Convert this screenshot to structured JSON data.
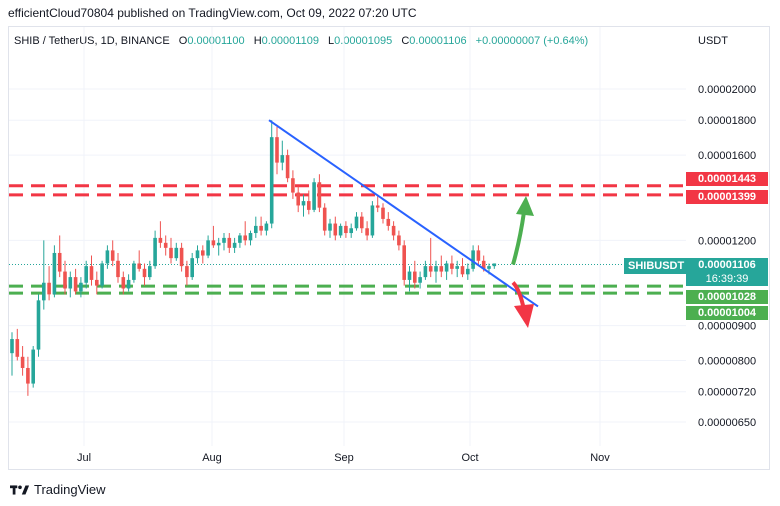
{
  "header": {
    "publisher": "efficientCloud70804 published on TradingView.com, Oct 09, 2022 07:20 UTC"
  },
  "legend": {
    "symbol": "SHIB / TetherUS, 1D, BINANCE",
    "open_label": "O",
    "open": "0.00001100",
    "high_label": "H",
    "high": "0.00001109",
    "low_label": "L",
    "low": "0.00001095",
    "close_label": "C",
    "close": "0.00001106",
    "change": "+0.00000007 (+0.64%)"
  },
  "currency": "USDT",
  "tags": {
    "red_upper": "0.00001443",
    "red_lower": "0.00001399",
    "symbol": "SHIBUSDT",
    "price": "0.00001106",
    "countdown": "16:39:39",
    "green_upper": "0.00001028",
    "green_lower": "0.00001004"
  },
  "footer": {
    "brand": "TradingView"
  },
  "colors": {
    "up": "#26a69a",
    "down": "#ef5350",
    "trendline": "#2962ff",
    "resistance": "#f23645",
    "support": "#4caf50"
  },
  "chart_data": {
    "type": "candlestick",
    "y_axis_scale": "log",
    "y_ticks": [
      "0.00002000",
      "0.00001800",
      "0.00001600",
      "0.00001200",
      "0.00000900",
      "0.00000800",
      "0.00000720",
      "0.00000650"
    ],
    "x_ticks": [
      "Jul",
      "Aug",
      "Sep",
      "Oct",
      "Nov"
    ],
    "resistance_zone": [
      1.399e-05,
      1.443e-05
    ],
    "support_zone": [
      1.004e-05,
      1.028e-05
    ],
    "last_price": 1.106e-05,
    "trendline": {
      "from": {
        "date": "2022-08-14",
        "price": 1.8e-05
      },
      "to": {
        "date": "2022-10-20",
        "price": 9.6e-06
      }
    },
    "forecast_arrows": [
      "up",
      "down"
    ],
    "candles": [
      {
        "o": 8.2e-06,
        "h": 8.8e-06,
        "l": 7.6e-06,
        "c": 8.6e-06
      },
      {
        "o": 8.6e-06,
        "h": 8.9e-06,
        "l": 8e-06,
        "c": 8.1e-06
      },
      {
        "o": 8.1e-06,
        "h": 8.4e-06,
        "l": 7.6e-06,
        "c": 7.8e-06
      },
      {
        "o": 7.8e-06,
        "h": 8.1e-06,
        "l": 7.1e-06,
        "c": 7.4e-06
      },
      {
        "o": 7.4e-06,
        "h": 8.4e-06,
        "l": 7.3e-06,
        "c": 8.3e-06
      },
      {
        "o": 8.3e-06,
        "h": 1e-05,
        "l": 8.1e-06,
        "c": 9.8e-06
      },
      {
        "o": 9.8e-06,
        "h": 1.2e-05,
        "l": 9.5e-06,
        "c": 1.04e-05
      },
      {
        "o": 1.04e-05,
        "h": 1.1e-05,
        "l": 9.8e-06,
        "c": 1e-05
      },
      {
        "o": 1e-05,
        "h": 1.18e-05,
        "l": 9.9e-06,
        "c": 1.15e-05
      },
      {
        "o": 1.15e-05,
        "h": 1.22e-05,
        "l": 1.06e-05,
        "c": 1.08e-05
      },
      {
        "o": 1.08e-05,
        "h": 1.12e-05,
        "l": 1e-05,
        "c": 1.02e-05
      },
      {
        "o": 1.02e-05,
        "h": 1.08e-05,
        "l": 9.9e-06,
        "c": 1.06e-05
      },
      {
        "o": 1.06e-05,
        "h": 1.09e-05,
        "l": 1e-05,
        "c": 1.01e-05
      },
      {
        "o": 1.01e-05,
        "h": 1.06e-05,
        "l": 9.9e-06,
        "c": 1.04e-05
      },
      {
        "o": 1.04e-05,
        "h": 1.12e-05,
        "l": 1.02e-05,
        "c": 1.1e-05
      },
      {
        "o": 1.1e-05,
        "h": 1.14e-05,
        "l": 1.03e-05,
        "c": 1.05e-05
      },
      {
        "o": 1.05e-05,
        "h": 1.08e-05,
        "l": 1e-05,
        "c": 1.03e-05
      },
      {
        "o": 1.03e-05,
        "h": 1.12e-05,
        "l": 1.02e-05,
        "c": 1.11e-05
      },
      {
        "o": 1.11e-05,
        "h": 1.18e-05,
        "l": 1.09e-05,
        "c": 1.16e-05
      },
      {
        "o": 1.16e-05,
        "h": 1.2e-05,
        "l": 1.1e-05,
        "c": 1.12e-05
      },
      {
        "o": 1.12e-05,
        "h": 1.15e-05,
        "l": 1.04e-05,
        "c": 1.06e-05
      },
      {
        "o": 1.06e-05,
        "h": 1.08e-05,
        "l": 1e-05,
        "c": 1.02e-05
      },
      {
        "o": 1.02e-05,
        "h": 1.07e-05,
        "l": 1.01e-05,
        "c": 1.05e-05
      },
      {
        "o": 1.05e-05,
        "h": 1.12e-05,
        "l": 1.04e-05,
        "c": 1.11e-05
      },
      {
        "o": 1.11e-05,
        "h": 1.16e-05,
        "l": 1.08e-05,
        "c": 1.09e-05
      },
      {
        "o": 1.09e-05,
        "h": 1.11e-05,
        "l": 1.03e-05,
        "c": 1.06e-05
      },
      {
        "o": 1.06e-05,
        "h": 1.12e-05,
        "l": 1.05e-05,
        "c": 1.1e-05
      },
      {
        "o": 1.1e-05,
        "h": 1.24e-05,
        "l": 1.09e-05,
        "c": 1.21e-05
      },
      {
        "o": 1.21e-05,
        "h": 1.28e-05,
        "l": 1.17e-05,
        "c": 1.19e-05
      },
      {
        "o": 1.19e-05,
        "h": 1.22e-05,
        "l": 1.14e-05,
        "c": 1.17e-05
      },
      {
        "o": 1.17e-05,
        "h": 1.21e-05,
        "l": 1.11e-05,
        "c": 1.13e-05
      },
      {
        "o": 1.13e-05,
        "h": 1.19e-05,
        "l": 1.12e-05,
        "c": 1.17e-05
      },
      {
        "o": 1.17e-05,
        "h": 1.19e-05,
        "l": 1.08e-05,
        "c": 1.1e-05
      },
      {
        "o": 1.1e-05,
        "h": 1.12e-05,
        "l": 1.03e-05,
        "c": 1.06e-05
      },
      {
        "o": 1.06e-05,
        "h": 1.15e-05,
        "l": 1.05e-05,
        "c": 1.13e-05
      },
      {
        "o": 1.13e-05,
        "h": 1.18e-05,
        "l": 1.11e-05,
        "c": 1.16e-05
      },
      {
        "o": 1.16e-05,
        "h": 1.18e-05,
        "l": 1.11e-05,
        "c": 1.14e-05
      },
      {
        "o": 1.14e-05,
        "h": 1.22e-05,
        "l": 1.13e-05,
        "c": 1.2e-05
      },
      {
        "o": 1.2e-05,
        "h": 1.26e-05,
        "l": 1.17e-05,
        "c": 1.18e-05
      },
      {
        "o": 1.18e-05,
        "h": 1.21e-05,
        "l": 1.14e-05,
        "c": 1.19e-05
      },
      {
        "o": 1.19e-05,
        "h": 1.23e-05,
        "l": 1.16e-05,
        "c": 1.21e-05
      },
      {
        "o": 1.21e-05,
        "h": 1.23e-05,
        "l": 1.15e-05,
        "c": 1.17e-05
      },
      {
        "o": 1.17e-05,
        "h": 1.21e-05,
        "l": 1.15e-05,
        "c": 1.19e-05
      },
      {
        "o": 1.19e-05,
        "h": 1.23e-05,
        "l": 1.17e-05,
        "c": 1.22e-05
      },
      {
        "o": 1.22e-05,
        "h": 1.28e-05,
        "l": 1.18e-05,
        "c": 1.2e-05
      },
      {
        "o": 1.2e-05,
        "h": 1.24e-05,
        "l": 1.18e-05,
        "c": 1.23e-05
      },
      {
        "o": 1.23e-05,
        "h": 1.3e-05,
        "l": 1.21e-05,
        "c": 1.26e-05
      },
      {
        "o": 1.26e-05,
        "h": 1.3e-05,
        "l": 1.22e-05,
        "c": 1.24e-05
      },
      {
        "o": 1.24e-05,
        "h": 1.28e-05,
        "l": 1.22e-05,
        "c": 1.27e-05
      },
      {
        "o": 1.27e-05,
        "h": 1.8e-05,
        "l": 1.25e-05,
        "c": 1.7e-05
      },
      {
        "o": 1.7e-05,
        "h": 1.76e-05,
        "l": 1.5e-05,
        "c": 1.56e-05
      },
      {
        "o": 1.56e-05,
        "h": 1.68e-05,
        "l": 1.52e-05,
        "c": 1.6e-05
      },
      {
        "o": 1.6e-05,
        "h": 1.63e-05,
        "l": 1.46e-05,
        "c": 1.48e-05
      },
      {
        "o": 1.48e-05,
        "h": 1.52e-05,
        "l": 1.38e-05,
        "c": 1.41e-05
      },
      {
        "o": 1.41e-05,
        "h": 1.44e-05,
        "l": 1.32e-05,
        "c": 1.35e-05
      },
      {
        "o": 1.35e-05,
        "h": 1.4e-05,
        "l": 1.3e-05,
        "c": 1.37e-05
      },
      {
        "o": 1.37e-05,
        "h": 1.42e-05,
        "l": 1.31e-05,
        "c": 1.33e-05
      },
      {
        "o": 1.33e-05,
        "h": 1.48e-05,
        "l": 1.32e-05,
        "c": 1.46e-05
      },
      {
        "o": 1.46e-05,
        "h": 1.5e-05,
        "l": 1.32e-05,
        "c": 1.34e-05
      },
      {
        "o": 1.34e-05,
        "h": 1.36e-05,
        "l": 1.22e-05,
        "c": 1.24e-05
      },
      {
        "o": 1.24e-05,
        "h": 1.29e-05,
        "l": 1.21e-05,
        "c": 1.27e-05
      },
      {
        "o": 1.27e-05,
        "h": 1.3e-05,
        "l": 1.2e-05,
        "c": 1.22e-05
      },
      {
        "o": 1.22e-05,
        "h": 1.27e-05,
        "l": 1.21e-05,
        "c": 1.26e-05
      },
      {
        "o": 1.26e-05,
        "h": 1.28e-05,
        "l": 1.21e-05,
        "c": 1.23e-05
      },
      {
        "o": 1.23e-05,
        "h": 1.27e-05,
        "l": 1.21e-05,
        "c": 1.25e-05
      },
      {
        "o": 1.25e-05,
        "h": 1.32e-05,
        "l": 1.24e-05,
        "c": 1.3e-05
      },
      {
        "o": 1.3e-05,
        "h": 1.32e-05,
        "l": 1.23e-05,
        "c": 1.25e-05
      },
      {
        "o": 1.25e-05,
        "h": 1.28e-05,
        "l": 1.2e-05,
        "c": 1.22e-05
      },
      {
        "o": 1.22e-05,
        "h": 1.37e-05,
        "l": 1.21e-05,
        "c": 1.35e-05
      },
      {
        "o": 1.35e-05,
        "h": 1.4e-05,
        "l": 1.32e-05,
        "c": 1.34e-05
      },
      {
        "o": 1.34e-05,
        "h": 1.36e-05,
        "l": 1.27e-05,
        "c": 1.29e-05
      },
      {
        "o": 1.29e-05,
        "h": 1.32e-05,
        "l": 1.24e-05,
        "c": 1.26e-05
      },
      {
        "o": 1.26e-05,
        "h": 1.28e-05,
        "l": 1.2e-05,
        "c": 1.22e-05
      },
      {
        "o": 1.22e-05,
        "h": 1.24e-05,
        "l": 1.16e-05,
        "c": 1.18e-05
      },
      {
        "o": 1.18e-05,
        "h": 1.2e-05,
        "l": 1.03e-05,
        "c": 1.05e-05
      },
      {
        "o": 1.05e-05,
        "h": 1.1e-05,
        "l": 1.01e-05,
        "c": 1.08e-05
      },
      {
        "o": 1.08e-05,
        "h": 1.12e-05,
        "l": 1.02e-05,
        "c": 1.04e-05
      },
      {
        "o": 1.04e-05,
        "h": 1.08e-05,
        "l": 1.02e-05,
        "c": 1.06e-05
      },
      {
        "o": 1.06e-05,
        "h": 1.12e-05,
        "l": 1.05e-05,
        "c": 1.1e-05
      },
      {
        "o": 1.1e-05,
        "h": 1.21e-05,
        "l": 1.06e-05,
        "c": 1.08e-05
      },
      {
        "o": 1.08e-05,
        "h": 1.12e-05,
        "l": 1.04e-05,
        "c": 1.1e-05
      },
      {
        "o": 1.1e-05,
        "h": 1.14e-05,
        "l": 1.06e-05,
        "c": 1.08e-05
      },
      {
        "o": 1.08e-05,
        "h": 1.12e-05,
        "l": 1.05e-05,
        "c": 1.11e-05
      },
      {
        "o": 1.11e-05,
        "h": 1.14e-05,
        "l": 1.07e-05,
        "c": 1.09e-05
      },
      {
        "o": 1.09e-05,
        "h": 1.12e-05,
        "l": 1.06e-05,
        "c": 1.1e-05
      },
      {
        "o": 1.1e-05,
        "h": 1.13e-05,
        "l": 1.06e-05,
        "c": 1.07e-05
      },
      {
        "o": 1.07e-05,
        "h": 1.11e-05,
        "l": 1.05e-05,
        "c": 1.09e-05
      },
      {
        "o": 1.09e-05,
        "h": 1.18e-05,
        "l": 1.08e-05,
        "c": 1.16e-05
      },
      {
        "o": 1.16e-05,
        "h": 1.18e-05,
        "l": 1.1e-05,
        "c": 1.12e-05
      },
      {
        "o": 1.12e-05,
        "h": 1.14e-05,
        "l": 1.08e-05,
        "c": 1.09e-05
      },
      {
        "o": 1.09e-05,
        "h": 1.11e-05,
        "l": 1.07e-05,
        "c": 1.1e-05
      },
      {
        "o": 1.1e-05,
        "h": 1.11e-05,
        "l": 1.09e-05,
        "c": 1.11e-05
      }
    ]
  }
}
